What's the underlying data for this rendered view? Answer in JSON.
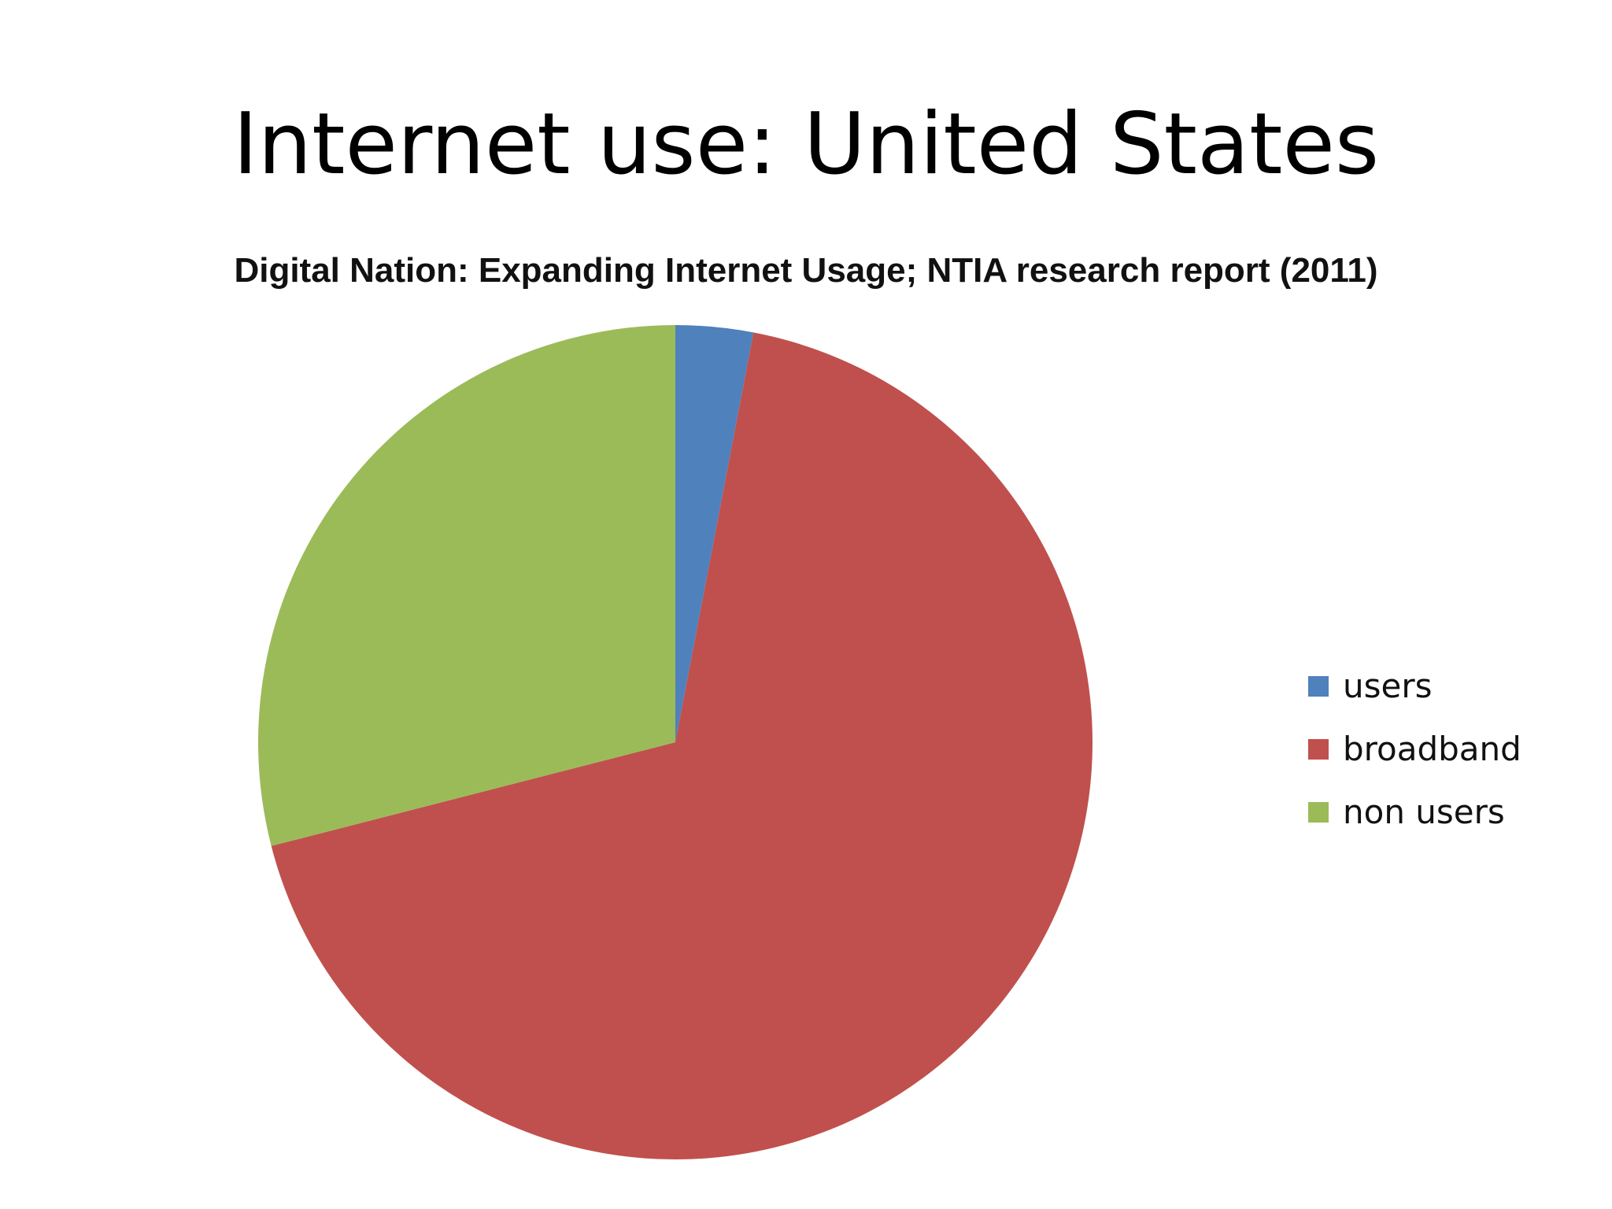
{
  "slide": {
    "title": "Internet use: United States"
  },
  "chart_data": {
    "type": "pie",
    "title": "Digital Nation: Expanding Internet Usage; NTIA research report (2011)",
    "categories": [
      "users",
      "broadband",
      "non users"
    ],
    "values": [
      3,
      68,
      29
    ],
    "unit": "%",
    "colors": [
      "#4f81bd",
      "#c0504d",
      "#9bbb59"
    ],
    "start_angle_deg": 0,
    "direction": "clockwise",
    "legend_position": "right"
  }
}
